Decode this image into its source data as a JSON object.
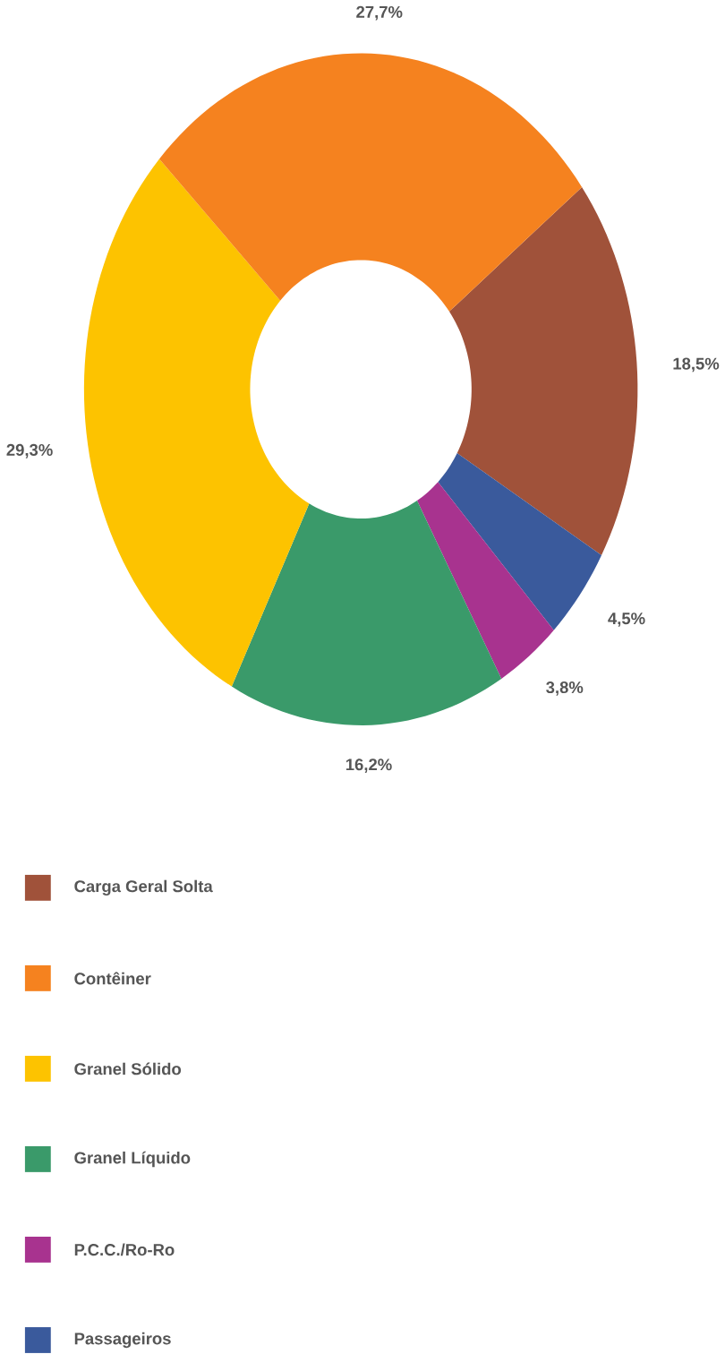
{
  "chart_data": {
    "type": "donut",
    "categories": [
      "Carga Geral Solta",
      "Contêiner",
      "Granel Sólido",
      "Granel Líquido",
      "P.C.C./Ro-Ro",
      "Passageiros"
    ],
    "values": [
      18.5,
      27.7,
      29.3,
      16.2,
      3.8,
      4.5
    ],
    "colors": [
      "#a0523a",
      "#f5821f",
      "#fdc300",
      "#3a9a6a",
      "#a8338f",
      "#3a5a9c"
    ],
    "value_labels": [
      "18,5%",
      "27,7%",
      "29,3%",
      "16,2%",
      "3,8%",
      "4,5%"
    ],
    "legend": "bottom"
  }
}
